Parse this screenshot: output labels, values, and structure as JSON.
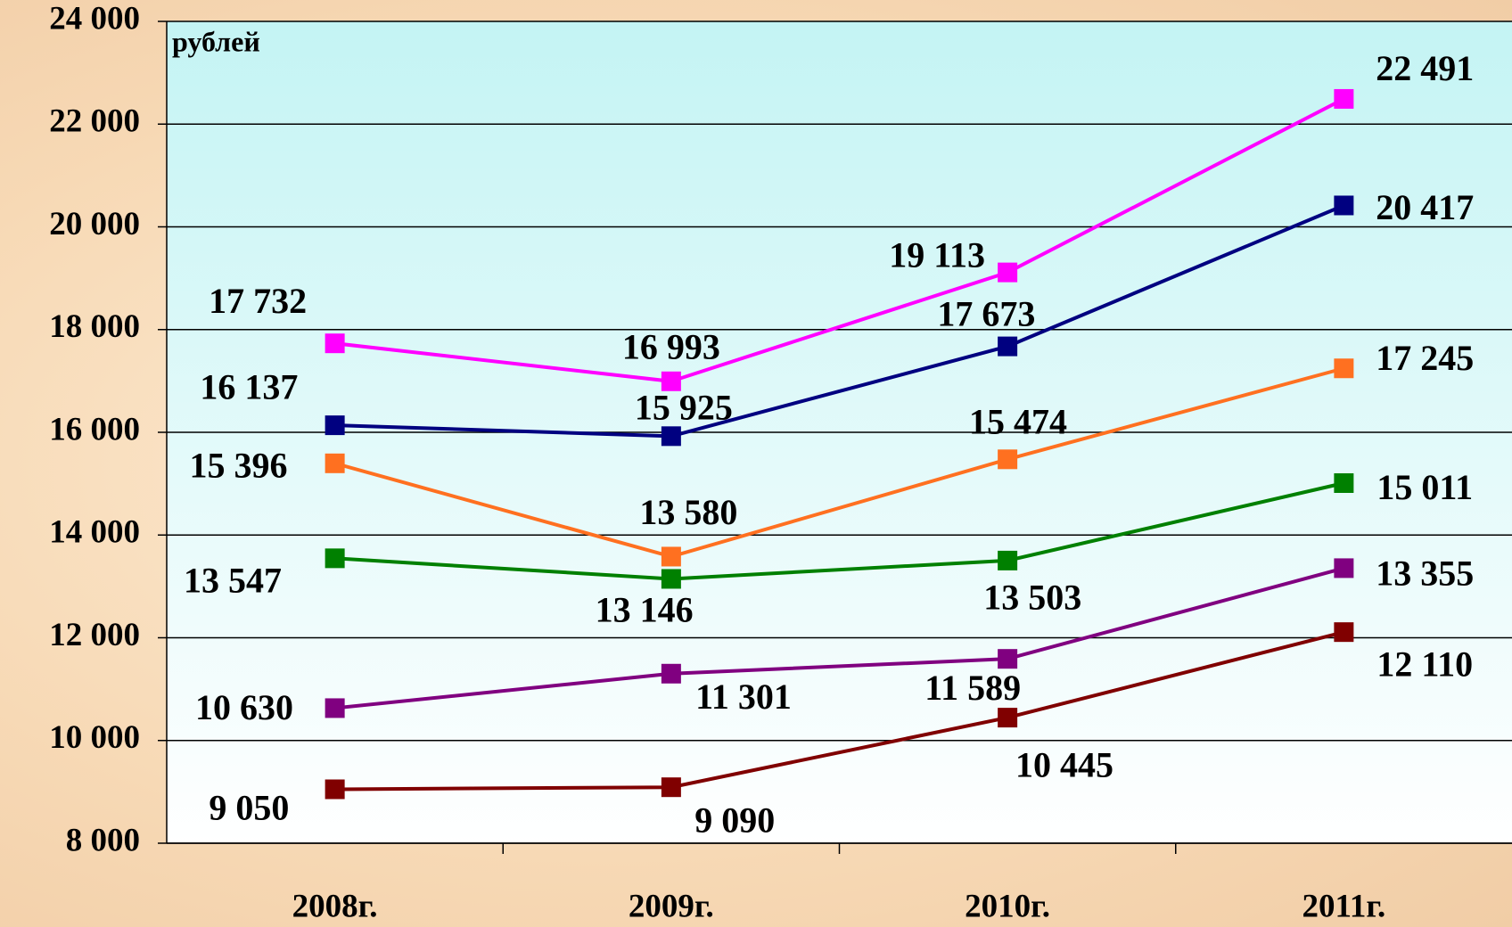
{
  "chart_data": {
    "type": "line",
    "y_axis_label": "рублей",
    "categories": [
      "2008г.",
      "2009г.",
      "2010г.",
      "2011г."
    ],
    "ylim": [
      8000,
      24000
    ],
    "yticks": [
      {
        "value": 8000,
        "label": "8 000"
      },
      {
        "value": 10000,
        "label": "10 000"
      },
      {
        "value": 12000,
        "label": "12 000"
      },
      {
        "value": 14000,
        "label": "14 000"
      },
      {
        "value": 16000,
        "label": "16 000"
      },
      {
        "value": 18000,
        "label": "18 000"
      },
      {
        "value": 20000,
        "label": "20 000"
      },
      {
        "value": 22000,
        "label": "22 000"
      },
      {
        "value": 24000,
        "label": "24 000"
      }
    ],
    "grid": true,
    "series": [
      {
        "color": "#ff00ff",
        "values": [
          17732,
          16993,
          19113,
          22491
        ],
        "value_labels": [
          "17 732",
          "16 993",
          "19 113",
          "22 491"
        ]
      },
      {
        "color": "#000080",
        "values": [
          16137,
          15925,
          17673,
          20417
        ],
        "value_labels": [
          "16 137",
          "15 925",
          "17 673",
          "20 417"
        ]
      },
      {
        "color": "#ff7020",
        "values": [
          15396,
          13580,
          15474,
          17245
        ],
        "value_labels": [
          "15 396",
          "13 580",
          "15 474",
          "17 245"
        ]
      },
      {
        "color": "#008000",
        "values": [
          13547,
          13146,
          13503,
          15011
        ],
        "value_labels": [
          "13 547",
          "13 146",
          "13 503",
          "15 011"
        ]
      },
      {
        "color": "#800080",
        "values": [
          10630,
          11301,
          11589,
          13355
        ],
        "value_labels": [
          "10 630",
          "11 301",
          "11 589",
          "13 355"
        ]
      },
      {
        "color": "#800000",
        "values": [
          9050,
          9090,
          10445,
          12110
        ],
        "value_labels": [
          "9 050",
          "9 090",
          "10 445",
          "12 110"
        ]
      }
    ]
  }
}
